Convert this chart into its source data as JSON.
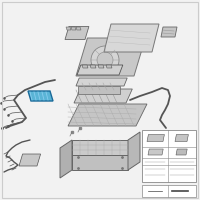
{
  "bg_color": "#f2f2f2",
  "part_color": "#d2d2d2",
  "part_edge": "#888888",
  "highlight_color": "#5ab4d6",
  "highlight_edge": "#1a6a99",
  "wire_color": "#555555",
  "dark_part": "#b8b8b8",
  "white_part": "#e8e8e8"
}
